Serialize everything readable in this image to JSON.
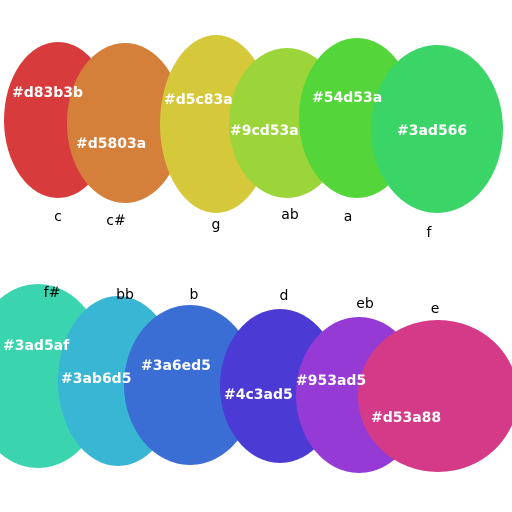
{
  "rows": [
    {
      "swatches": [
        {
          "hex": "#d83b3b",
          "note": "c"
        },
        {
          "hex": "#d5803a",
          "note": "c#"
        },
        {
          "hex": "#d5c83a",
          "note": "g"
        },
        {
          "hex": "#9cd53a",
          "note": "ab"
        },
        {
          "hex": "#54d53a",
          "note": "a"
        },
        {
          "hex": "#3ad566",
          "note": "f"
        }
      ]
    },
    {
      "swatches": [
        {
          "hex": "#3ad5af",
          "note": "f#"
        },
        {
          "hex": "#3ab6d5",
          "note": "bb"
        },
        {
          "hex": "#3a6ed5",
          "note": "b"
        },
        {
          "hex": "#4c3ad5",
          "note": "d"
        },
        {
          "hex": "#953ad5",
          "note": "eb"
        },
        {
          "hex": "#d53a88",
          "note": "e"
        }
      ]
    }
  ]
}
